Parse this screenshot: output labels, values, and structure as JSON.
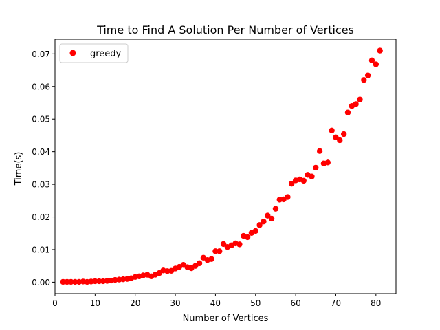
{
  "chart_data": {
    "type": "scatter",
    "title": "Time to Find A Solution Per Number of Vertices",
    "xlabel": "Number of Vertices",
    "ylabel": "Time(s)",
    "xlim": [
      0,
      85
    ],
    "ylim": [
      -0.0035,
      0.0745
    ],
    "x_ticks": [
      0,
      10,
      20,
      30,
      40,
      50,
      60,
      70,
      80
    ],
    "y_ticks": [
      0.0,
      0.01,
      0.02,
      0.03,
      0.04,
      0.05,
      0.06,
      0.07
    ],
    "x_tick_labels": [
      "0",
      "10",
      "20",
      "30",
      "40",
      "50",
      "60",
      "70",
      "80"
    ],
    "y_tick_labels": [
      "0.00",
      "0.01",
      "0.02",
      "0.03",
      "0.04",
      "0.05",
      "0.06",
      "0.07"
    ],
    "grid": false,
    "legend": {
      "position": "top-left",
      "entries": [
        "greedy"
      ]
    },
    "series": [
      {
        "name": "greedy",
        "color": "#ff0000",
        "x": [
          2,
          3,
          4,
          5,
          6,
          7,
          8,
          9,
          10,
          11,
          12,
          13,
          14,
          15,
          16,
          17,
          18,
          19,
          20,
          21,
          22,
          23,
          24,
          25,
          26,
          27,
          28,
          29,
          30,
          31,
          32,
          33,
          34,
          35,
          36,
          37,
          38,
          39,
          40,
          41,
          42,
          43,
          44,
          45,
          46,
          47,
          48,
          49,
          50,
          51,
          52,
          53,
          54,
          55,
          56,
          57,
          58,
          59,
          60,
          61,
          62,
          63,
          64,
          65,
          66,
          67,
          68,
          69,
          70,
          71,
          72,
          73,
          74,
          75,
          76,
          77,
          78,
          79,
          80,
          81
        ],
        "y": [
          0.0001,
          0.0001,
          0.0001,
          0.0001,
          0.0001,
          0.0002,
          0.0001,
          0.0002,
          0.0003,
          0.0003,
          0.0003,
          0.0004,
          0.0005,
          0.0007,
          0.0008,
          0.0009,
          0.001,
          0.0012,
          0.0016,
          0.0018,
          0.0021,
          0.0023,
          0.0018,
          0.0023,
          0.0028,
          0.0036,
          0.0034,
          0.0035,
          0.0042,
          0.0047,
          0.0053,
          0.0046,
          0.0043,
          0.005,
          0.0058,
          0.0075,
          0.0068,
          0.0071,
          0.0095,
          0.0095,
          0.0117,
          0.0108,
          0.0113,
          0.0119,
          0.0116,
          0.0142,
          0.0138,
          0.0151,
          0.0157,
          0.0175,
          0.0186,
          0.0204,
          0.0195,
          0.0225,
          0.0253,
          0.0254,
          0.0261,
          0.0302,
          0.0312,
          0.0315,
          0.0311,
          0.0329,
          0.0324,
          0.0351,
          0.0402,
          0.0364,
          0.0367,
          0.0465,
          0.0444,
          0.0435,
          0.0454,
          0.052,
          0.054,
          0.0546,
          0.056,
          0.062,
          0.0634,
          0.068,
          0.0668,
          0.071
        ]
      }
    ]
  }
}
